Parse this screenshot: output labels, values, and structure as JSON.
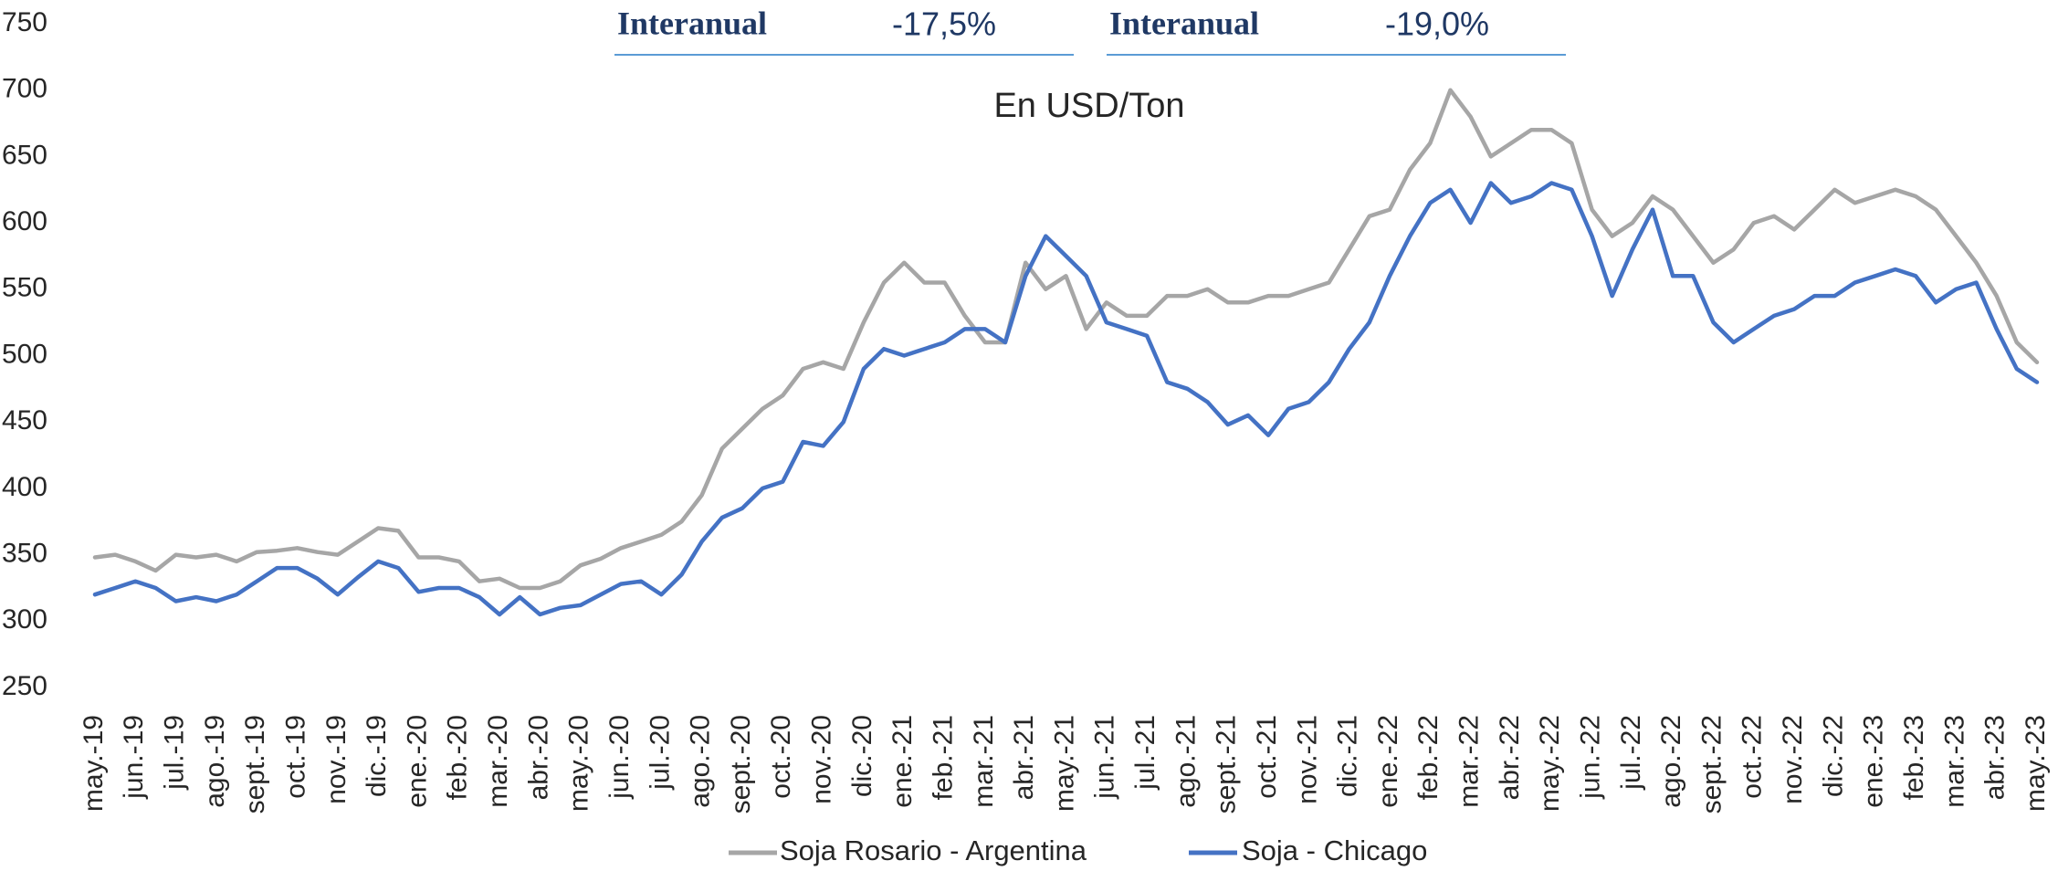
{
  "chart_data": {
    "type": "line",
    "subtitle": "En USD/Ton",
    "annotations": [
      {
        "label": "Interanual",
        "value": "-17,5%"
      },
      {
        "label": "Interanual",
        "value": "-19,0%"
      }
    ],
    "categories": [
      "may.-19",
      null,
      "jun.-19",
      null,
      "jul.-19",
      null,
      "ago.-19",
      null,
      "sept.-19",
      null,
      "oct.-19",
      null,
      "nov.-19",
      null,
      "dic.-19",
      null,
      "ene.-20",
      null,
      "feb.-20",
      null,
      "mar.-20",
      null,
      "abr.-20",
      null,
      "may.-20",
      null,
      "jun.-20",
      null,
      "jul.-20",
      null,
      "ago.-20",
      null,
      "sept.-20",
      null,
      "oct.-20",
      null,
      "nov.-20",
      null,
      "dic.-20",
      null,
      "ene.-21",
      null,
      "feb.-21",
      null,
      "mar.-21",
      null,
      "abr.-21",
      null,
      "may.-21",
      null,
      "jun.-21",
      null,
      "jul.-21",
      null,
      "ago.-21",
      null,
      "sept.-21",
      null,
      "oct.-21",
      null,
      "nov.-21",
      null,
      "dic.-21",
      null,
      "ene.-22",
      null,
      "feb.-22",
      null,
      "mar.-22",
      null,
      "abr.-22",
      null,
      "may.-22",
      null,
      "jun.-22",
      null,
      "jul.-22",
      null,
      "ago.-22",
      null,
      "sept.-22",
      null,
      "oct.-22",
      null,
      "nov.-22",
      null,
      "dic.-22",
      null,
      "ene.-23",
      null,
      "feb.-23",
      null,
      "mar.-23",
      null,
      "abr.-23",
      null,
      "may.-23"
    ],
    "series": [
      {
        "name": "Soja Rosario - Argentina",
        "color": "#a6a6a6",
        "values": [
          348,
          350,
          345,
          338,
          350,
          348,
          350,
          345,
          352,
          353,
          355,
          352,
          350,
          360,
          370,
          368,
          348,
          348,
          345,
          330,
          332,
          325,
          325,
          330,
          342,
          347,
          355,
          360,
          365,
          375,
          395,
          430,
          445,
          460,
          470,
          490,
          495,
          490,
          525,
          555,
          570,
          555,
          555,
          530,
          510,
          510,
          570,
          550,
          560,
          520,
          540,
          530,
          530,
          545,
          545,
          550,
          540,
          540,
          545,
          545,
          550,
          555,
          580,
          605,
          610,
          640,
          660,
          700,
          680,
          650,
          660,
          670,
          670,
          660,
          610,
          590,
          600,
          620,
          610,
          590,
          570,
          580,
          600,
          605,
          595,
          610,
          625,
          615,
          620,
          625,
          620,
          610,
          590,
          570,
          545,
          510,
          495
        ]
      },
      {
        "name": "Soja - Chicago",
        "color": "#4472c4",
        "values": [
          320,
          325,
          330,
          325,
          315,
          318,
          315,
          320,
          330,
          340,
          340,
          332,
          320,
          333,
          345,
          340,
          322,
          325,
          325,
          318,
          305,
          318,
          305,
          310,
          312,
          320,
          328,
          330,
          320,
          335,
          360,
          378,
          385,
          400,
          405,
          435,
          432,
          450,
          490,
          505,
          500,
          505,
          510,
          520,
          520,
          510,
          560,
          590,
          575,
          560,
          525,
          520,
          515,
          480,
          475,
          465,
          448,
          455,
          440,
          460,
          465,
          480,
          505,
          525,
          560,
          590,
          615,
          625,
          600,
          630,
          615,
          620,
          630,
          625,
          590,
          545,
          580,
          610,
          560,
          560,
          525,
          510,
          520,
          530,
          535,
          545,
          545,
          555,
          560,
          565,
          560,
          540,
          550,
          555,
          520,
          490,
          480
        ]
      }
    ],
    "ylim": [
      250,
      750
    ],
    "yticks": [
      250,
      300,
      350,
      400,
      450,
      500,
      550,
      600,
      650,
      700,
      750
    ],
    "grid": false
  }
}
